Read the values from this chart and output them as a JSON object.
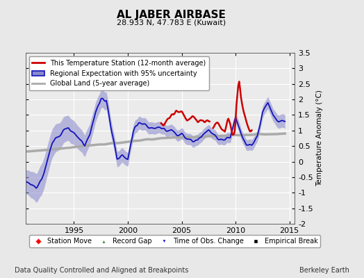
{
  "title": "AL JABER AIRBASE",
  "subtitle": "28.933 N, 47.783 E (Kuwait)",
  "ylabel": "Temperature Anomaly (°C)",
  "xlim": [
    1990.5,
    2015.5
  ],
  "ylim": [
    -2.0,
    3.5
  ],
  "yticks": [
    -2,
    -1.5,
    -1,
    -0.5,
    0,
    0.5,
    1,
    1.5,
    2,
    2.5,
    3,
    3.5
  ],
  "xticks": [
    1995,
    2000,
    2005,
    2010,
    2015
  ],
  "bg_color": "#e8e8e8",
  "plot_bg_color": "#ebebeb",
  "grid_color": "#ffffff",
  "red_line_color": "#cc0000",
  "blue_line_color": "#1111bb",
  "blue_fill_color": "#8888cc",
  "gray_line_color": "#aaaaaa",
  "footer_left": "Data Quality Controlled and Aligned at Breakpoints",
  "footer_right": "Berkeley Earth",
  "title_fontsize": 11,
  "subtitle_fontsize": 8,
  "tick_fontsize": 8,
  "legend_fontsize": 7,
  "footer_fontsize": 7
}
